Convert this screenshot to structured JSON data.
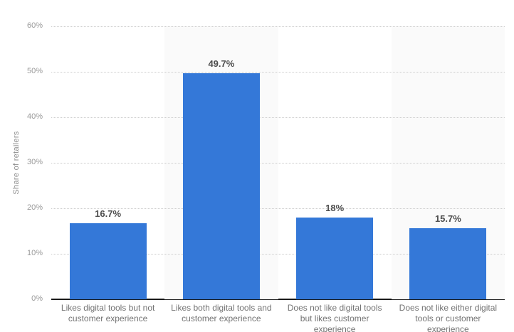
{
  "chart_data": {
    "type": "bar",
    "title": "",
    "xlabel": "",
    "ylabel": "Share of retailers",
    "categories": [
      "Likes digital tools but not customer experience",
      "Likes both digital tools and customer experience",
      "Does not like digital tools but likes customer experience",
      "Does not like either digital tools or customer experience"
    ],
    "values": [
      16.7,
      49.7,
      18,
      15.7
    ],
    "value_labels": [
      "16.7%",
      "49.7%",
      "18%",
      "15.7%"
    ],
    "ylim": [
      0,
      60
    ],
    "yticks": [
      0,
      10,
      20,
      30,
      40,
      50,
      60
    ],
    "ytick_labels": [
      "0%",
      "10%",
      "20%",
      "30%",
      "40%",
      "50%",
      "60%"
    ],
    "grid": "horizontal-dotted",
    "legend": "none",
    "band_pattern": [
      false,
      true,
      false,
      true
    ],
    "colors": {
      "bar": "#3478d8",
      "band": "#fafafa",
      "gridline": "#cccccc",
      "axis": "#1a1a1a",
      "tick_label": "#999999",
      "ylabel": "#8c8c8c",
      "value_label": "#4d4d4d",
      "category_label": "#737373",
      "background": "#ffffff"
    }
  }
}
